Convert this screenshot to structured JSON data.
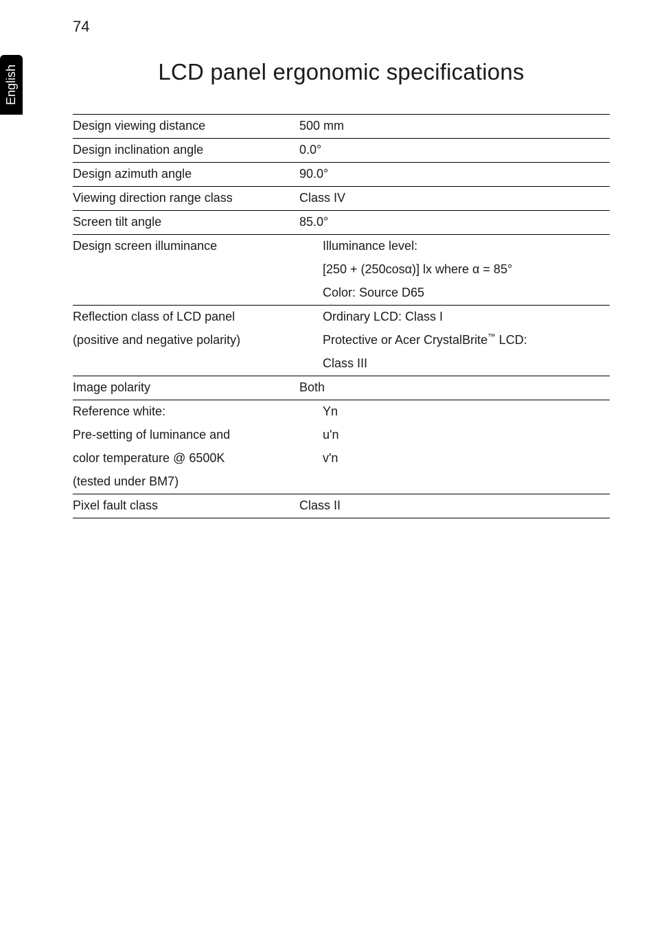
{
  "page_number": "74",
  "side_tab": "English",
  "title": "LCD panel ergonomic specifications",
  "rows": {
    "r1_label": "Design viewing distance",
    "r1_value": "500 mm",
    "r2_label": "Design inclination angle",
    "r2_value": "0.0°",
    "r3_label": "Design azimuth angle",
    "r3_value": "90.0°",
    "r4_label": "Viewing direction range class",
    "r4_value": "Class IV",
    "r5_label": "Screen tilt angle",
    "r5_value": "85.0°",
    "r6_label": "Design screen illuminance",
    "r6_line1": "Illuminance level:",
    "r6_line2": "[250 + (250cosα)] lx where α = 85°",
    "r6_line3": "Color: Source D65",
    "r7_label1": "Reflection class of LCD panel",
    "r7_label2": "(positive and negative polarity)",
    "r7_line1": "Ordinary LCD: Class I",
    "r7_line2a": "Protective or Acer CrystalBrite",
    "r7_line2_sup": "™",
    "r7_line2b": " LCD:",
    "r7_line3": "Class III",
    "r8_label": "Image polarity",
    "r8_value": "Both",
    "r9_label1": "Reference white:",
    "r9_label2": "Pre-setting of luminance and",
    "r9_label3": "color temperature @ 6500K",
    "r9_label4": "(tested under BM7)",
    "r9_val1": "Yn",
    "r9_val2": "u'n",
    "r9_val3": "v'n",
    "r10_label": "Pixel fault class",
    "r10_value": "Class II"
  }
}
